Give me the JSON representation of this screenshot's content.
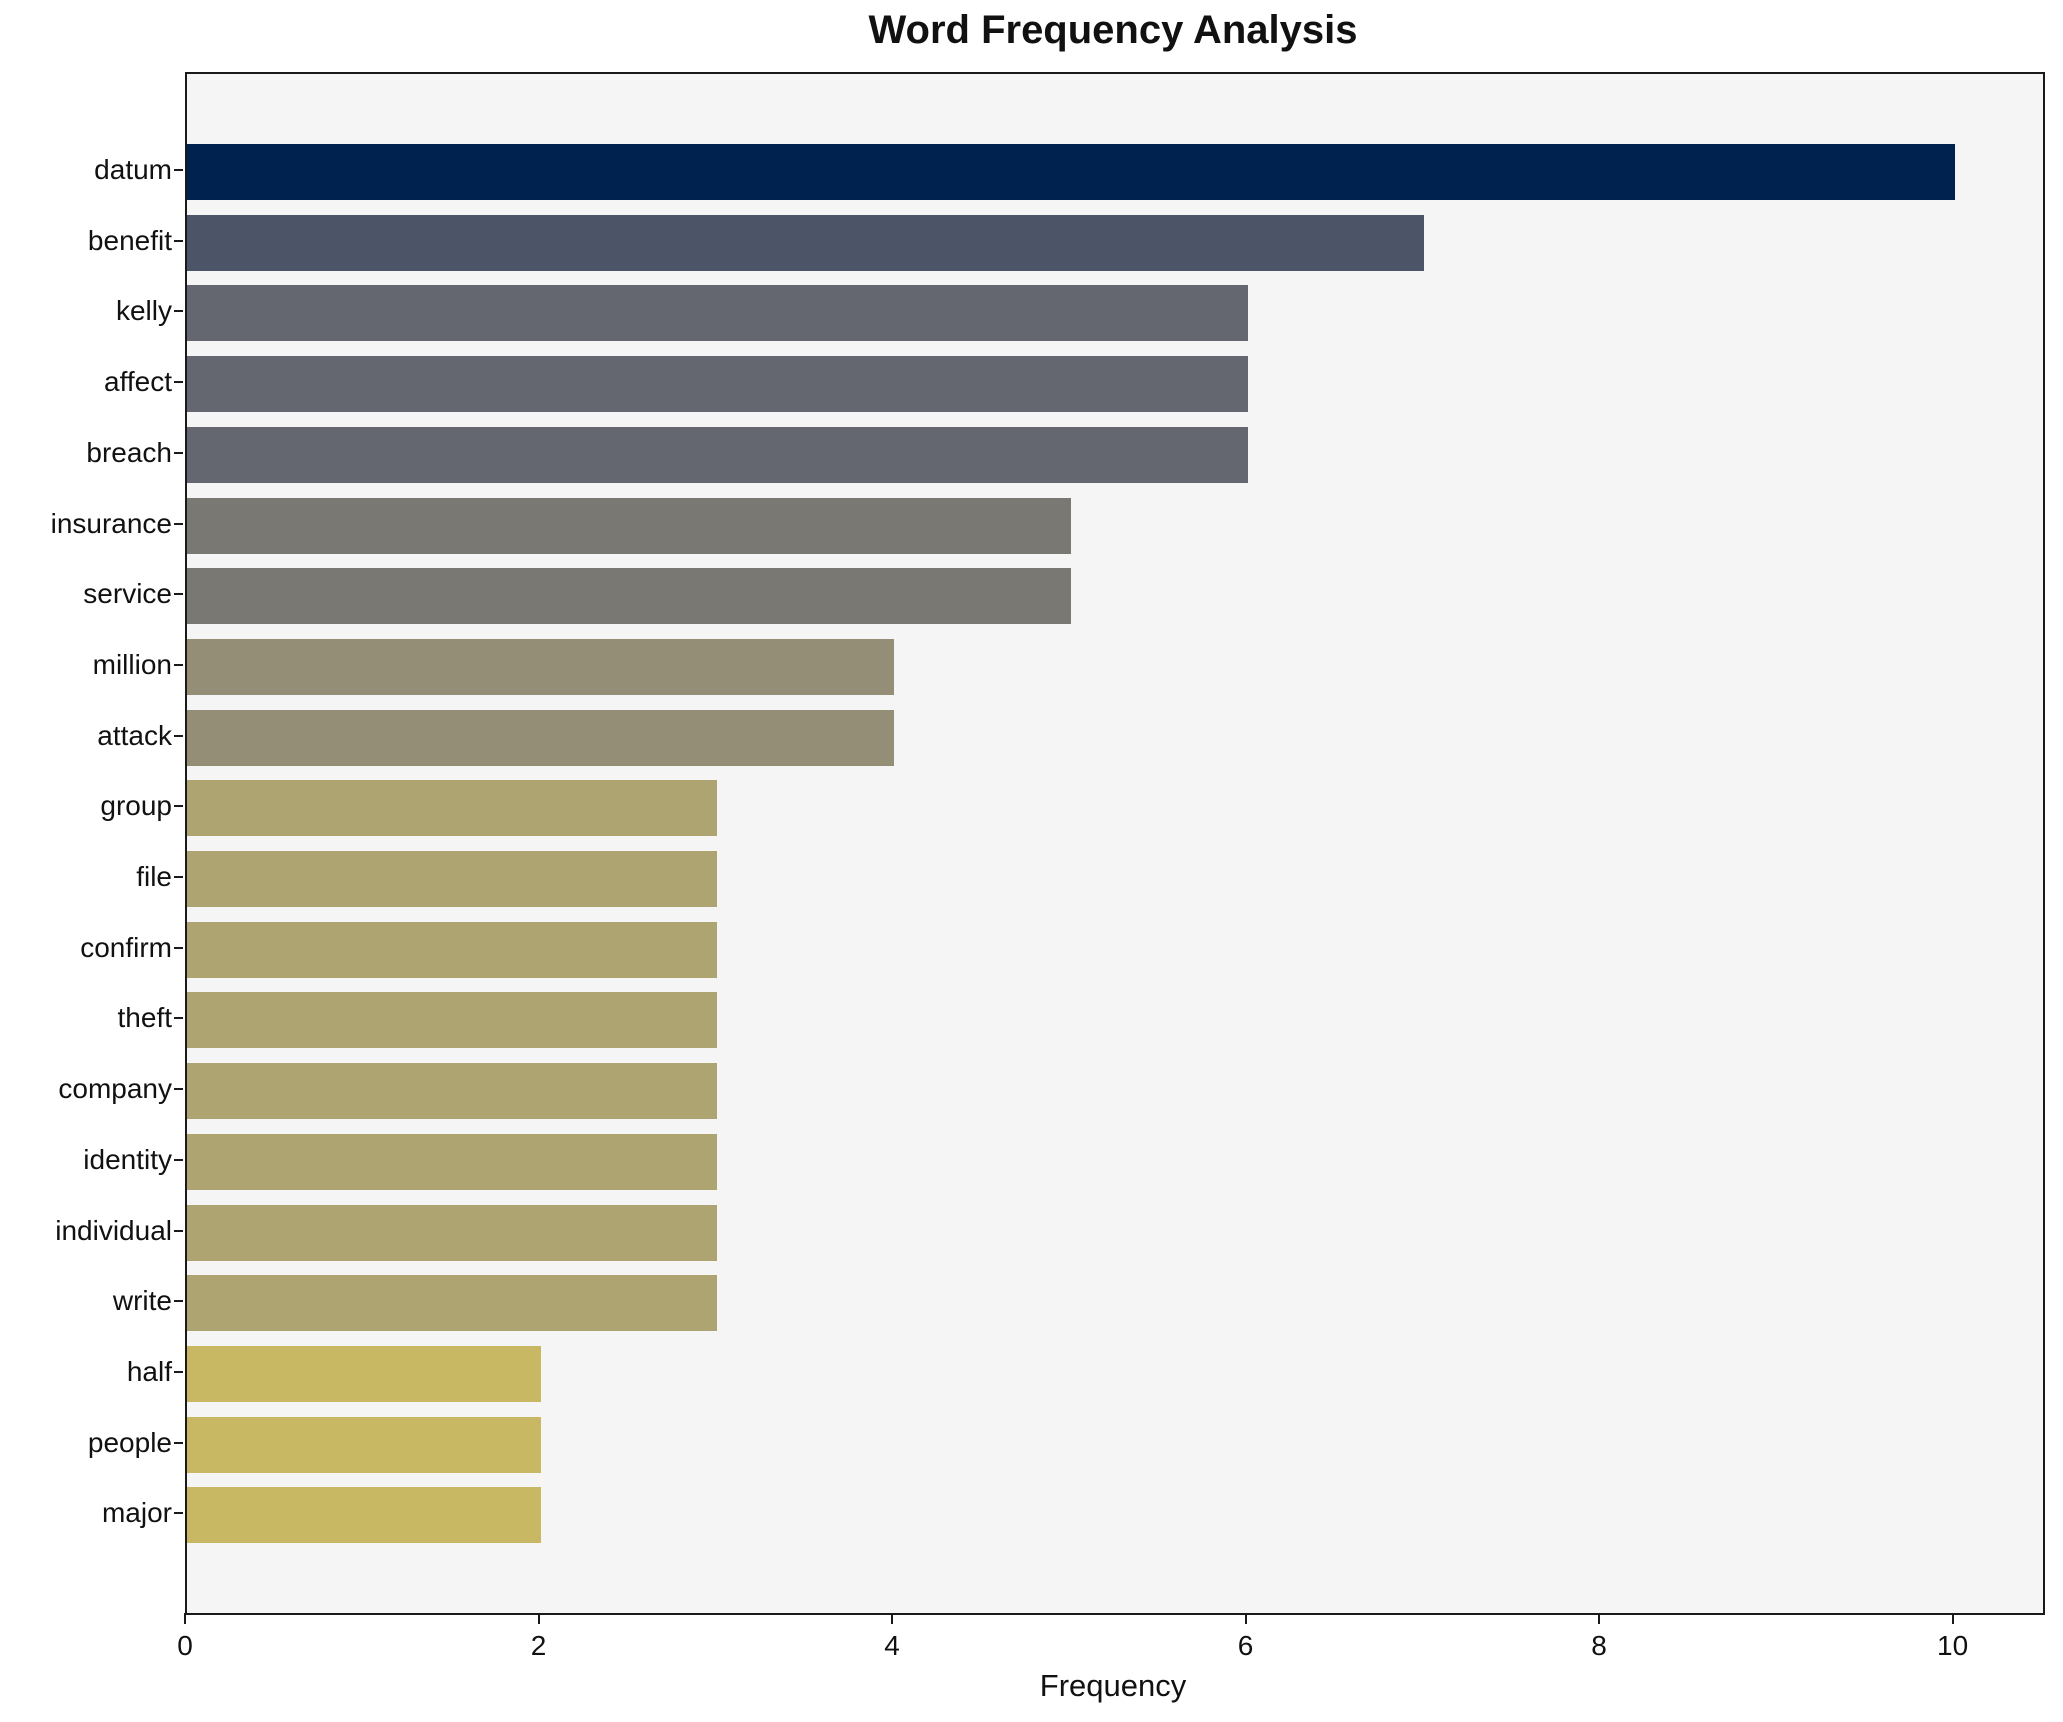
{
  "title": "Word Frequency Analysis",
  "xlabel": "Frequency",
  "chart_data": {
    "type": "bar",
    "orientation": "horizontal",
    "title": "Word Frequency Analysis",
    "xlabel": "Frequency",
    "ylabel": "",
    "xlim": [
      0,
      10.5
    ],
    "x_ticks": [
      0,
      2,
      4,
      6,
      8,
      10
    ],
    "grid": false,
    "legend": "none",
    "colormap": "cividis",
    "plot_bg_color": "#f5f5f6",
    "figure_bg_color": "#ffffff",
    "categories": [
      "datum",
      "benefit",
      "kelly",
      "affect",
      "breach",
      "insurance",
      "service",
      "million",
      "attack",
      "group",
      "file",
      "confirm",
      "theft",
      "company",
      "identity",
      "individual",
      "write",
      "half",
      "people",
      "major"
    ],
    "values": [
      10,
      7,
      6,
      6,
      6,
      5,
      5,
      4,
      4,
      3,
      3,
      3,
      3,
      3,
      3,
      3,
      3,
      2,
      2,
      2
    ],
    "bar_colors": [
      "#00224e",
      "#4c5568",
      "#64676f",
      "#64676f",
      "#64676f",
      "#7a7872",
      "#7a7872",
      "#938e75",
      "#938e75",
      "#aea471",
      "#aea471",
      "#aea471",
      "#aea471",
      "#aea471",
      "#aea471",
      "#aea471",
      "#aea471",
      "#c8b863",
      "#c8b863",
      "#c8b863"
    ]
  }
}
